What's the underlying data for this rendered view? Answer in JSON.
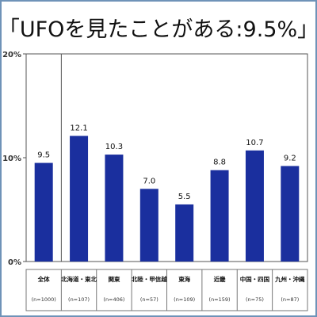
{
  "chart_data": {
    "type": "bar",
    "title": "「UFOを見たことがある:9.5%」",
    "categories": [
      "全体",
      "北海道・東北",
      "関東",
      "北陸・甲信越",
      "東海",
      "近畿",
      "中国・四国",
      "九州・沖縄"
    ],
    "sample_sizes": [
      "(n=1000)",
      "(n=107)",
      "(n=406)",
      "(n=57)",
      "(n=109)",
      "(n=159)",
      "(n=75)",
      "(n=87)"
    ],
    "values": [
      9.5,
      12.1,
      10.3,
      7.0,
      5.5,
      8.8,
      10.7,
      9.2
    ],
    "value_labels": [
      "9.5",
      "12.1",
      "10.3",
      "7.0",
      "5.5",
      "8.8",
      "10.7",
      "9.2"
    ],
    "ylim": [
      0,
      20
    ],
    "yticks": [
      "0%",
      "10%",
      "20%"
    ],
    "grid": false,
    "bar_color": "#1a2f9e",
    "frame_color": "#6f93b8"
  }
}
